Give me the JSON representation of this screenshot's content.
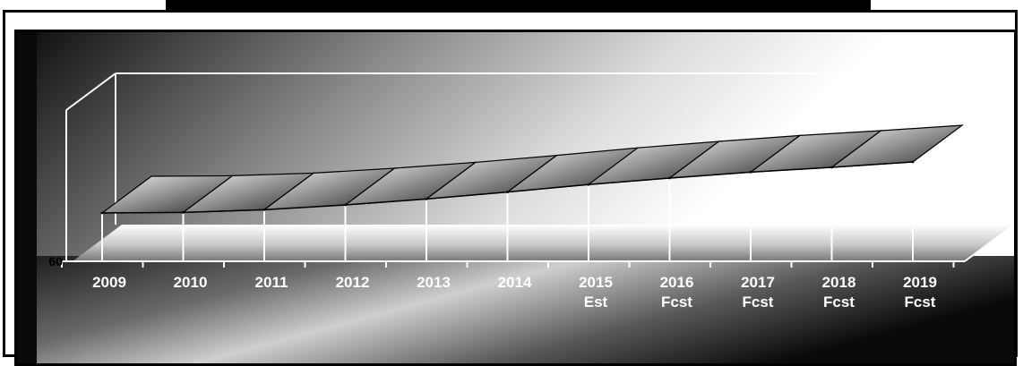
{
  "title": "",
  "colors": {
    "frame": "#000000",
    "background_dark": "#111111",
    "background_light": "#ffffff",
    "axis_lines": "#ffffff",
    "ribbon_light": "#eeeeee",
    "ribbon_dark": "#222222"
  },
  "chart_data": {
    "type": "area",
    "style": "3d-ribbon",
    "title": "",
    "xlabel": "",
    "ylabel": "",
    "y_tick_labels": [
      "60"
    ],
    "ylim": [
      60,
      100
    ],
    "grid": false,
    "legend": "none",
    "categories": [
      [
        "2009"
      ],
      [
        "2010"
      ],
      [
        "2011"
      ],
      [
        "2012"
      ],
      [
        "2013"
      ],
      [
        "2014"
      ],
      [
        "2015",
        "Est"
      ],
      [
        "2016",
        "Fcst"
      ],
      [
        "2017",
        "Fcst"
      ],
      [
        "2018",
        "Fcst"
      ],
      [
        "2019",
        "Fcst"
      ]
    ],
    "series": [
      {
        "values": [
          69.0,
          69.1,
          69.6,
          70.5,
          71.6,
          72.9,
          74.3,
          75.5,
          76.6,
          77.5,
          78.5
        ]
      }
    ]
  }
}
